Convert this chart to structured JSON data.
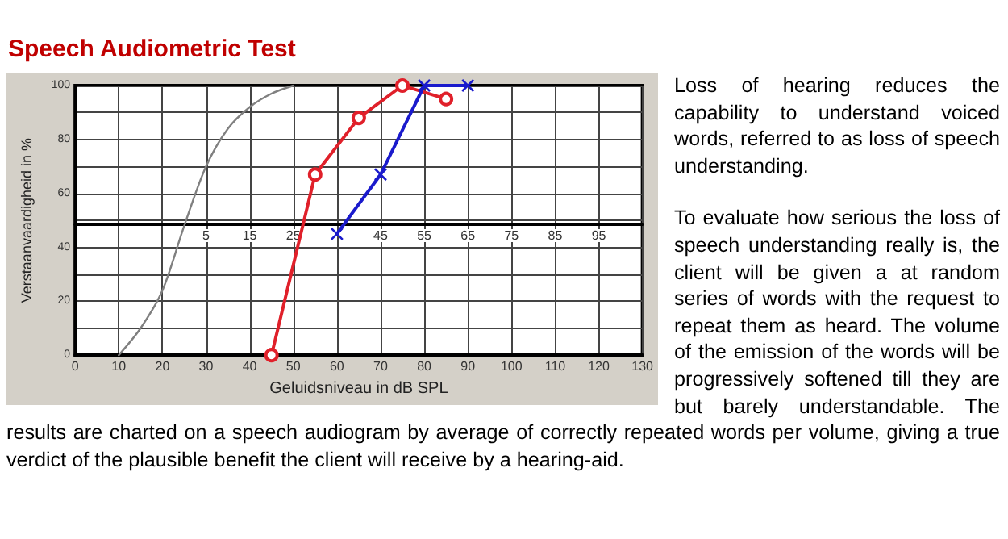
{
  "chart_data": {
    "type": "line",
    "title": "Speech Audiometric Test",
    "xlabel": "Geluidsniveau in dB SPL",
    "ylabel": "Verstaanvaardigheid in %",
    "xlim": [
      0,
      130
    ],
    "xticks": [
      0,
      10,
      20,
      30,
      40,
      50,
      60,
      70,
      80,
      90,
      100,
      110,
      120,
      130
    ],
    "ylim": [
      0,
      100
    ],
    "yticks": [
      0,
      {
        "value": 10,
        "label": null
      },
      20,
      {
        "value": 30,
        "label": null
      },
      40,
      {
        "value": 50,
        "label": null
      },
      60,
      {
        "value": 70,
        "label": null
      },
      80,
      {
        "value": 90,
        "label": null
      },
      100
    ],
    "x2lim": [
      -25,
      105
    ],
    "x2ticks": [
      5,
      15,
      25,
      45,
      55,
      65,
      75,
      85,
      95
    ],
    "grid": true,
    "series": [
      {
        "color": "#808080",
        "marker": "none",
        "x": [
          10,
          15,
          20,
          25,
          30,
          35,
          40,
          45,
          50
        ],
        "values": [
          0,
          10,
          24,
          48,
          70,
          84,
          92,
          97,
          100
        ]
      },
      {
        "color": "#e0202a",
        "marker": "circle",
        "x": [
          45,
          55,
          65,
          75,
          85
        ],
        "values": [
          0,
          67,
          88,
          100,
          95
        ]
      },
      {
        "color": "#1a1acc",
        "marker": "cross",
        "x": [
          60,
          70,
          80,
          90
        ],
        "values": [
          45,
          67,
          100,
          100
        ]
      }
    ],
    "annotations": [
      "Loss of hearing reduces the capability to understand voiced words, referred to as loss of speech understanding.",
      "To evaluate how serious the loss of speech understanding really is, the client will be given a at random series of words with the request to repeat them as heard. The volume of the emission of the words will be progressively softened till they are but barely understandable. The results are charted on a speech audiogram by average of correctly repeated words per volume, giving a true verdict of the plausible benefit the client will receive by a hearing-aid."
    ]
  }
}
